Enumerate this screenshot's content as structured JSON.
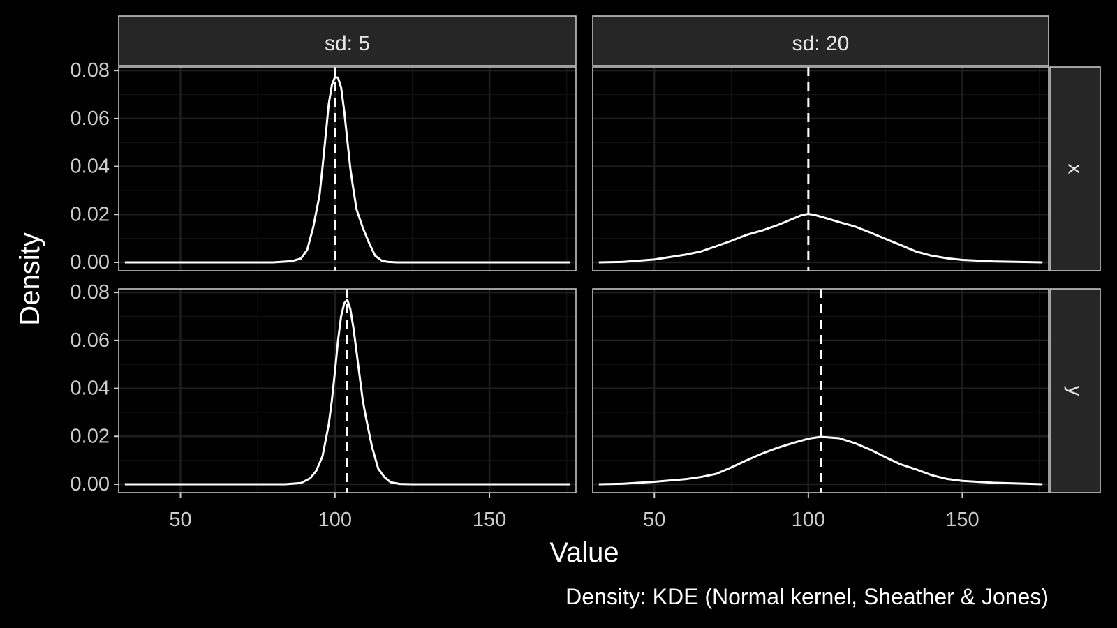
{
  "chart_data": {
    "type": "line",
    "xlabel": "Value",
    "ylabel": "Density",
    "caption": "Density: KDE (Normal kernel, Sheather & Jones)",
    "xlim": [
      30,
      178
    ],
    "ylim": [
      -0.0035,
      0.0815
    ],
    "x_ticks": [
      50,
      100,
      150
    ],
    "x_tick_labels": [
      "50",
      "100",
      "150"
    ],
    "y_ticks": [
      0,
      0.02,
      0.04,
      0.06,
      0.08
    ],
    "y_tick_labels": [
      "0.00",
      "0.02",
      "0.04",
      "0.06",
      "0.08"
    ],
    "grid": true,
    "column_strips": [
      "sd: 5",
      "sd: 20"
    ],
    "row_strips": [
      "x",
      "y"
    ],
    "colors": {
      "background": "#000000",
      "strip": "#262626",
      "line": "#ffffff",
      "grid": "#1e1e1e",
      "text": "#cccccc"
    },
    "panels": [
      {
        "column": "sd: 5",
        "row": "x",
        "mean": 100,
        "x": [
          32,
          80,
          86,
          89,
          91,
          93,
          95,
          96,
          97,
          98,
          99,
          100,
          101,
          102,
          103,
          104,
          105,
          106,
          107,
          109,
          111,
          113,
          115,
          117,
          120,
          130,
          176
        ],
        "y": [
          0,
          0,
          0.0005,
          0.0016,
          0.0052,
          0.0148,
          0.028,
          0.04,
          0.053,
          0.066,
          0.074,
          0.0773,
          0.077,
          0.073,
          0.063,
          0.051,
          0.039,
          0.03,
          0.022,
          0.0145,
          0.0082,
          0.0028,
          0.0008,
          0.0002,
          0,
          0,
          0
        ]
      },
      {
        "column": "sd: 20",
        "row": "x",
        "mean": 100,
        "x": [
          32,
          40,
          50,
          60,
          65,
          70,
          75,
          80,
          85,
          90,
          95,
          98,
          100,
          102,
          105,
          110,
          115,
          120,
          125,
          130,
          135,
          140,
          145,
          150,
          160,
          176
        ],
        "y": [
          0,
          0.0002,
          0.0012,
          0.0032,
          0.0045,
          0.0067,
          0.009,
          0.0115,
          0.0133,
          0.0155,
          0.0182,
          0.0198,
          0.0202,
          0.0198,
          0.0187,
          0.0168,
          0.015,
          0.0125,
          0.0098,
          0.0072,
          0.0045,
          0.0028,
          0.0017,
          0.001,
          0.0004,
          0
        ]
      },
      {
        "column": "sd: 5",
        "row": "y",
        "mean": 104,
        "x": [
          32,
          84,
          89,
          92,
          94,
          96,
          98,
          99,
          100,
          101,
          102,
          103,
          104,
          105,
          106,
          107,
          108,
          109,
          110,
          112,
          114,
          116,
          118,
          121,
          125,
          176
        ],
        "y": [
          0,
          0,
          0.0005,
          0.0025,
          0.0057,
          0.0118,
          0.025,
          0.035,
          0.047,
          0.06,
          0.07,
          0.0755,
          0.077,
          0.073,
          0.065,
          0.055,
          0.045,
          0.035,
          0.028,
          0.0155,
          0.0065,
          0.003,
          0.0008,
          0.0001,
          0,
          0
        ]
      },
      {
        "column": "sd: 20",
        "row": "y",
        "mean": 104,
        "x": [
          32,
          40,
          50,
          60,
          65,
          70,
          75,
          80,
          85,
          90,
          95,
          100,
          104,
          110,
          115,
          120,
          125,
          130,
          135,
          140,
          145,
          150,
          160,
          176
        ],
        "y": [
          0,
          0.0002,
          0.001,
          0.0021,
          0.003,
          0.0043,
          0.007,
          0.01,
          0.0128,
          0.0152,
          0.0172,
          0.019,
          0.0198,
          0.0192,
          0.0172,
          0.0145,
          0.0113,
          0.0083,
          0.0062,
          0.0038,
          0.0022,
          0.0014,
          0.0006,
          0
        ]
      }
    ]
  }
}
